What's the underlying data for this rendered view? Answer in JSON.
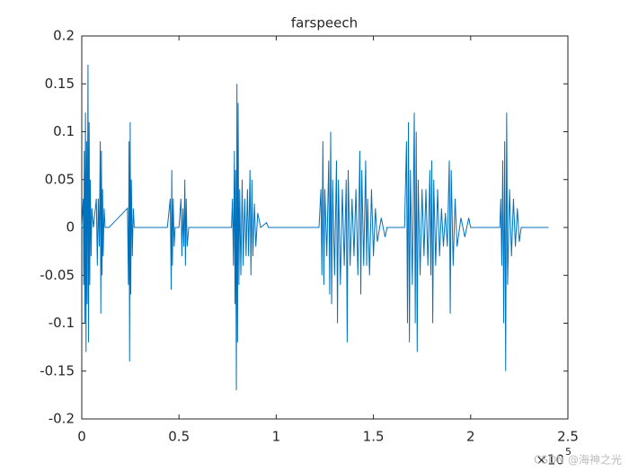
{
  "chart_data": {
    "type": "line",
    "title": "farspeech",
    "x_multiplier": {
      "base": "×10",
      "exponent": "5"
    },
    "watermark": "CSDN @海神之光",
    "color": "#0072bd",
    "xlim": [
      0,
      2.5
    ],
    "xticks": [
      0,
      0.5,
      1,
      1.5,
      2,
      2.5
    ],
    "ylim": [
      -0.2,
      0.2
    ],
    "yticks": [
      -0.2,
      -0.15,
      -0.1,
      -0.05,
      0,
      0.05,
      0.1,
      0.15,
      0.2
    ],
    "grid": false,
    "x": [
      0,
      0.008,
      0.01,
      0.013,
      0.016,
      0.019,
      0.022,
      0.025,
      0.028,
      0.032,
      0.035,
      0.038,
      0.041,
      0.044,
      0.048,
      0.052,
      0.06,
      0.075,
      0.08,
      0.085,
      0.09,
      0.095,
      0.098,
      0.101,
      0.104,
      0.107,
      0.11,
      0.115,
      0.12,
      0.14,
      0.235,
      0.24,
      0.243,
      0.246,
      0.249,
      0.252,
      0.255,
      0.26,
      0.265,
      0.27,
      0.44,
      0.455,
      0.46,
      0.463,
      0.466,
      0.47,
      0.475,
      0.48,
      0.5,
      0.51,
      0.515,
      0.52,
      0.525,
      0.53,
      0.533,
      0.537,
      0.542,
      0.55,
      0.77,
      0.775,
      0.78,
      0.785,
      0.788,
      0.791,
      0.795,
      0.798,
      0.801,
      0.804,
      0.808,
      0.812,
      0.818,
      0.825,
      0.83,
      0.838,
      0.845,
      0.852,
      0.858,
      0.865,
      0.87,
      0.875,
      0.88,
      0.888,
      0.895,
      0.905,
      0.92,
      0.95,
      0.96,
      1.22,
      1.23,
      1.235,
      1.24,
      1.245,
      1.25,
      1.26,
      1.27,
      1.275,
      1.28,
      1.285,
      1.29,
      1.3,
      1.31,
      1.315,
      1.32,
      1.33,
      1.34,
      1.35,
      1.36,
      1.365,
      1.37,
      1.38,
      1.39,
      1.4,
      1.41,
      1.42,
      1.43,
      1.435,
      1.44,
      1.45,
      1.46,
      1.465,
      1.47,
      1.48,
      1.49,
      1.5,
      1.51,
      1.52,
      1.54,
      1.56,
      1.57,
      1.66,
      1.67,
      1.675,
      1.68,
      1.685,
      1.69,
      1.7,
      1.71,
      1.715,
      1.72,
      1.725,
      1.73,
      1.74,
      1.75,
      1.76,
      1.77,
      1.78,
      1.79,
      1.795,
      1.8,
      1.805,
      1.81,
      1.82,
      1.83,
      1.84,
      1.85,
      1.86,
      1.87,
      1.88,
      1.89,
      1.895,
      1.9,
      1.91,
      1.92,
      1.93,
      1.95,
      1.97,
      1.99,
      2.0,
      2.15,
      2.155,
      2.16,
      2.165,
      2.17,
      2.175,
      2.18,
      2.185,
      2.19,
      2.2,
      2.21,
      2.22,
      2.23,
      2.24,
      2.25,
      2.26,
      2.4
    ],
    "values": [
      0,
      0.03,
      -0.06,
      0.08,
      -0.1,
      0.12,
      -0.13,
      0.09,
      -0.08,
      0.17,
      -0.12,
      0.11,
      -0.06,
      0.05,
      -0.03,
      0.02,
      0,
      0.03,
      -0.04,
      0.03,
      -0.02,
      0.09,
      -0.09,
      0.08,
      -0.05,
      0.04,
      -0.03,
      0.02,
      0,
      0,
      0.02,
      -0.06,
      0.09,
      -0.14,
      0.11,
      -0.07,
      0.05,
      -0.03,
      0.02,
      0,
      0,
      0.03,
      -0.065,
      0.06,
      -0.04,
      0.03,
      -0.02,
      0,
      0,
      0.03,
      -0.03,
      0.02,
      -0.02,
      0.05,
      -0.04,
      0.03,
      -0.02,
      0,
      0,
      0.03,
      -0.04,
      0.08,
      -0.08,
      0.06,
      -0.17,
      0.15,
      -0.12,
      0.13,
      -0.06,
      0.04,
      -0.05,
      0.05,
      -0.04,
      0.03,
      -0.03,
      0.04,
      -0.03,
      0.06,
      -0.05,
      0.05,
      -0.03,
      0.025,
      -0.02,
      0.015,
      0,
      0.005,
      0,
      0,
      0.04,
      -0.05,
      0.09,
      -0.06,
      0.04,
      -0.03,
      0.07,
      -0.07,
      0.1,
      -0.08,
      0.05,
      -0.05,
      0.07,
      -0.1,
      0.05,
      -0.06,
      0.04,
      -0.04,
      0.05,
      -0.12,
      0.06,
      -0.04,
      0.03,
      -0.03,
      0.04,
      -0.05,
      0.08,
      -0.07,
      0.06,
      -0.04,
      0.07,
      -0.04,
      0.03,
      -0.05,
      0.04,
      -0.03,
      0.02,
      -0.015,
      0.01,
      -0.01,
      0,
      0,
      0.09,
      -0.1,
      0.11,
      -0.12,
      0.06,
      -0.06,
      0.12,
      -0.1,
      0.1,
      -0.13,
      0.05,
      -0.05,
      0.04,
      -0.03,
      0.04,
      -0.04,
      0.06,
      -0.05,
      0.07,
      -0.1,
      0.05,
      -0.04,
      0.04,
      -0.03,
      0.02,
      -0.02,
      0.015,
      -0.02,
      0.07,
      -0.09,
      0.06,
      -0.04,
      0.03,
      -0.02,
      0.01,
      -0.01,
      0.01,
      0,
      0,
      0.03,
      -0.04,
      0.07,
      -0.1,
      0.09,
      -0.15,
      0.12,
      -0.06,
      0.04,
      -0.03,
      0.03,
      -0.02,
      0.02,
      -0.015,
      0,
      0
    ]
  }
}
